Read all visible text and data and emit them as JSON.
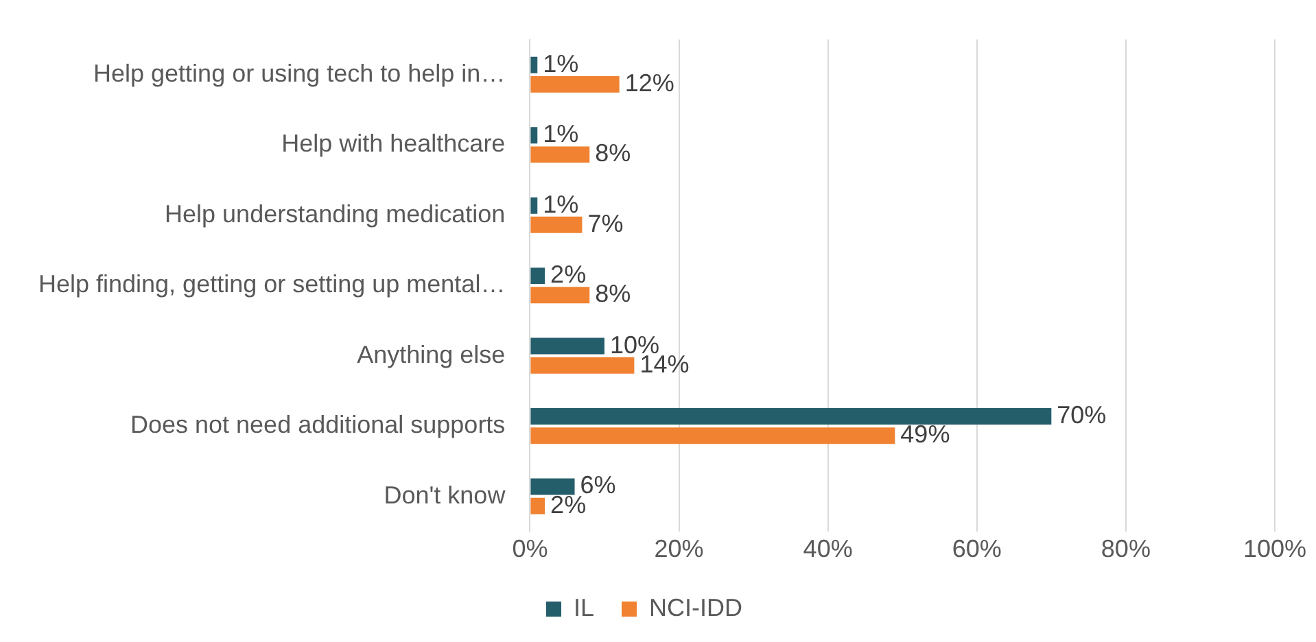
{
  "chart_data": {
    "type": "bar",
    "orientation": "horizontal",
    "categories": [
      "Help getting or using tech to help in…",
      "Help with healthcare",
      "Help understanding medication",
      "Help finding, getting or setting up mental…",
      "Anything else",
      "Does not need additional supports",
      "Don't know"
    ],
    "series": [
      {
        "name": "IL",
        "color": "#255e6b",
        "values": [
          1,
          1,
          1,
          2,
          10,
          70,
          6
        ],
        "value_labels": [
          "1%",
          "1%",
          "1%",
          "2%",
          "10%",
          "70%",
          "6%"
        ]
      },
      {
        "name": "NCI-IDD",
        "color": "#f08232",
        "values": [
          12,
          8,
          7,
          8,
          14,
          49,
          2
        ],
        "value_labels": [
          "12%",
          "8%",
          "7%",
          "8%",
          "14%",
          "49%",
          "2%"
        ]
      }
    ],
    "xlim": [
      0,
      100
    ],
    "xticks": [
      {
        "value": 0,
        "label": "0%"
      },
      {
        "value": 20,
        "label": "20%"
      },
      {
        "value": 40,
        "label": "40%"
      },
      {
        "value": 60,
        "label": "60%"
      },
      {
        "value": 80,
        "label": "80%"
      },
      {
        "value": 100,
        "label": "100%"
      }
    ],
    "grid": "x",
    "legend": "bottom"
  }
}
